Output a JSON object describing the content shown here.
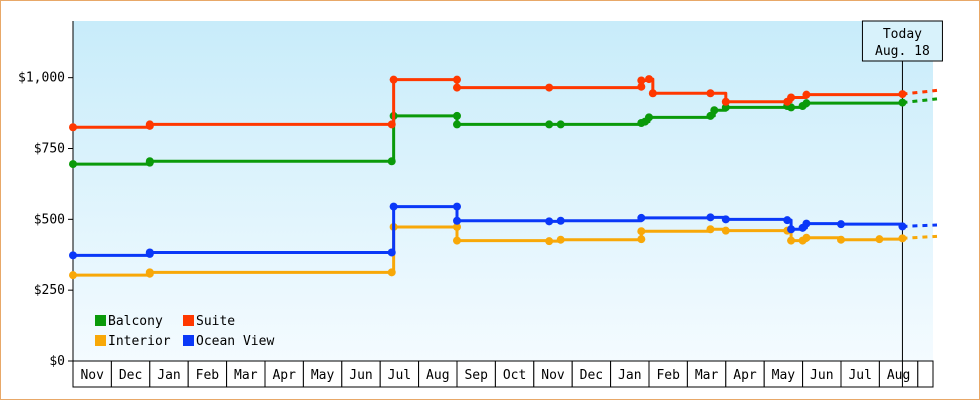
{
  "chart_data": {
    "type": "line",
    "title": "",
    "xlabel": "",
    "ylabel": "",
    "ylim": [
      0,
      1200
    ],
    "yticks": [
      0,
      250,
      500,
      750,
      1000
    ],
    "ytick_labels": [
      "$0",
      "$250",
      "$500",
      "$750",
      "$1,000"
    ],
    "categories": [
      "Nov",
      "Dec",
      "Jan",
      "Feb",
      "Mar",
      "Apr",
      "May",
      "Jun",
      "Jul",
      "Aug",
      "Sep",
      "Oct",
      "Nov",
      "Dec",
      "Jan",
      "Feb",
      "Mar",
      "Apr",
      "May",
      "Jun",
      "Jul",
      "Aug"
    ],
    "x_unit": "months from first visible month (Nov = 0)",
    "grid": false,
    "legend_position": "bottom-left",
    "today_marker": {
      "x": 21.6,
      "line1": "Today",
      "line2": "Aug. 18"
    },
    "step": true,
    "series": [
      {
        "name": "Balcony",
        "color": "#0a9a0a",
        "points": [
          [
            0,
            695
          ],
          [
            2,
            700
          ],
          [
            2,
            705
          ],
          [
            8.3,
            705
          ],
          [
            8.35,
            865
          ],
          [
            10,
            865
          ],
          [
            10,
            835
          ],
          [
            12.4,
            835
          ],
          [
            12.7,
            835
          ],
          [
            14.8,
            840
          ],
          [
            14.9,
            845
          ],
          [
            15,
            860
          ],
          [
            16.6,
            865
          ],
          [
            16.7,
            885
          ],
          [
            17,
            895
          ],
          [
            18.6,
            900
          ],
          [
            18.7,
            895
          ],
          [
            19,
            900
          ],
          [
            19.1,
            910
          ],
          [
            21.6,
            912
          ]
        ],
        "forecast": [
          [
            21.6,
            912
          ],
          [
            22.5,
            925
          ]
        ]
      },
      {
        "name": "Suite",
        "color": "#ff3800",
        "points": [
          [
            0,
            825
          ],
          [
            2,
            830
          ],
          [
            2,
            835
          ],
          [
            8.3,
            835
          ],
          [
            8.35,
            993
          ],
          [
            10,
            993
          ],
          [
            10,
            965
          ],
          [
            12.4,
            965
          ],
          [
            14.8,
            968
          ],
          [
            14.8,
            990
          ],
          [
            15,
            995
          ],
          [
            15.1,
            945
          ],
          [
            16.6,
            945
          ],
          [
            17,
            915
          ],
          [
            18.6,
            915
          ],
          [
            18.7,
            930
          ],
          [
            19.1,
            940
          ],
          [
            21.6,
            942
          ]
        ],
        "forecast": [
          [
            21.6,
            942
          ],
          [
            22.5,
            955
          ]
        ]
      },
      {
        "name": "Interior",
        "color": "#f8a808",
        "points": [
          [
            0,
            303
          ],
          [
            2,
            308
          ],
          [
            2,
            313
          ],
          [
            8.3,
            313
          ],
          [
            8.35,
            473
          ],
          [
            10,
            473
          ],
          [
            10,
            425
          ],
          [
            12.4,
            423
          ],
          [
            12.7,
            428
          ],
          [
            14.8,
            430
          ],
          [
            14.8,
            458
          ],
          [
            16.6,
            465
          ],
          [
            17,
            460
          ],
          [
            18.6,
            460
          ],
          [
            18.7,
            425
          ],
          [
            19,
            425
          ],
          [
            19.1,
            435
          ],
          [
            20,
            428
          ],
          [
            21,
            430
          ],
          [
            21.6,
            433
          ]
        ],
        "forecast": [
          [
            21.6,
            433
          ],
          [
            22.5,
            440
          ]
        ]
      },
      {
        "name": "Ocean View",
        "color": "#0a38f8",
        "points": [
          [
            0,
            373
          ],
          [
            2,
            378
          ],
          [
            2,
            383
          ],
          [
            8.3,
            383
          ],
          [
            8.35,
            545
          ],
          [
            10,
            545
          ],
          [
            10,
            495
          ],
          [
            12.4,
            493
          ],
          [
            12.7,
            495
          ],
          [
            14.8,
            505
          ],
          [
            16.6,
            507
          ],
          [
            17,
            500
          ],
          [
            18.6,
            497
          ],
          [
            18.7,
            465
          ],
          [
            19,
            470
          ],
          [
            19.1,
            485
          ],
          [
            20,
            483
          ],
          [
            21.6,
            475
          ]
        ],
        "forecast": [
          [
            21.6,
            475
          ],
          [
            22.5,
            480
          ]
        ]
      }
    ]
  }
}
